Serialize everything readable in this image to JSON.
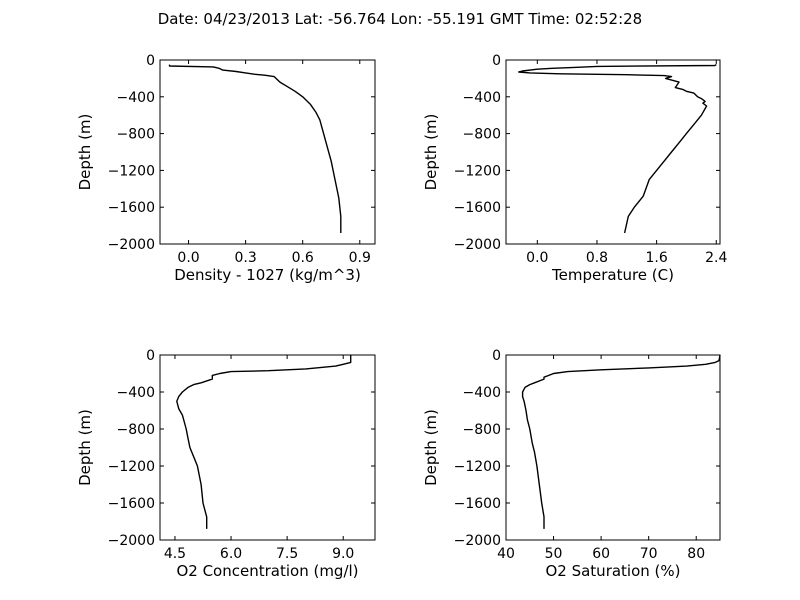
{
  "figure_title": "Date: 04/23/2013  Lat:  -56.764 Lon:  -55.191  GMT Time: 02:52:28",
  "chart_data": [
    {
      "type": "line",
      "xlabel": "Density - 1027 (kg/m^3)",
      "ylabel": "Depth (m)",
      "xlim": [
        -0.15,
        0.98
      ],
      "ylim": [
        -2000,
        0
      ],
      "xticks": [
        0.0,
        0.3,
        0.6,
        0.9
      ],
      "xtick_labels": [
        "0.0",
        "0.3",
        "0.6",
        "0.9"
      ],
      "yticks": [
        0,
        -400,
        -800,
        -1200,
        -1600,
        -2000
      ],
      "ytick_labels": [
        "0",
        "−400",
        "−800",
        "−1200",
        "−1600",
        "−2000"
      ],
      "x": [
        -0.1,
        -0.1,
        0.13,
        0.16,
        0.18,
        0.25,
        0.3,
        0.35,
        0.4,
        0.45,
        0.48,
        0.52,
        0.56,
        0.6,
        0.64,
        0.67,
        0.69,
        0.71,
        0.73,
        0.75,
        0.77,
        0.79,
        0.8,
        0.8
      ],
      "y": [
        -50,
        -65,
        -75,
        -90,
        -110,
        -125,
        -140,
        -155,
        -165,
        -180,
        -240,
        -290,
        -340,
        -400,
        -480,
        -570,
        -650,
        -800,
        -950,
        -1100,
        -1300,
        -1500,
        -1700,
        -1880
      ]
    },
    {
      "type": "line",
      "xlabel": "Temperature (C)",
      "ylabel": "Depth (m)",
      "xlim": [
        -0.42,
        2.45
      ],
      "ylim": [
        -2000,
        0
      ],
      "xticks": [
        0.0,
        0.8,
        1.6,
        2.4
      ],
      "xtick_labels": [
        "0.0",
        "0.8",
        "1.6",
        "2.4"
      ],
      "yticks": [
        0,
        -400,
        -800,
        -1200,
        -1600,
        -2000
      ],
      "ytick_labels": [
        "0",
        "−400",
        "−800",
        "−1200",
        "−1600",
        "−2000"
      ],
      "x": [
        2.4,
        2.38,
        0.8,
        0.5,
        0.2,
        0.0,
        -0.2,
        -0.25,
        -0.1,
        0.3,
        1.2,
        1.7,
        1.8,
        1.72,
        1.9,
        1.85,
        1.95,
        2.0,
        2.1,
        2.15,
        2.2,
        2.25,
        2.22,
        2.27,
        2.2,
        2.1,
        2.0,
        1.9,
        1.8,
        1.7,
        1.6,
        1.5,
        1.42,
        1.3,
        1.22,
        1.17
      ],
      "y": [
        -50,
        -60,
        -70,
        -80,
        -90,
        -100,
        -120,
        -130,
        -140,
        -150,
        -160,
        -170,
        -180,
        -200,
        -240,
        -300,
        -320,
        -340,
        -360,
        -400,
        -420,
        -450,
        -470,
        -500,
        -600,
        -700,
        -800,
        -900,
        -1000,
        -1100,
        -1200,
        -1300,
        -1480,
        -1600,
        -1700,
        -1880
      ]
    },
    {
      "type": "line",
      "xlabel": "O2 Concentration (mg/l)",
      "ylabel": "Depth (m)",
      "xlim": [
        4.1,
        9.85
      ],
      "ylim": [
        -2000,
        0
      ],
      "xticks": [
        4.5,
        6.0,
        7.5,
        9.0
      ],
      "xtick_labels": [
        "4.5",
        "6.0",
        "7.5",
        "9.0"
      ],
      "yticks": [
        0,
        -400,
        -800,
        -1200,
        -1600,
        -2000
      ],
      "ytick_labels": [
        "0",
        "−400",
        "−800",
        "−1200",
        "−1600",
        "−2000"
      ],
      "x": [
        9.2,
        9.2,
        9.0,
        8.8,
        8.0,
        7.0,
        6.0,
        5.7,
        5.5,
        5.5,
        5.2,
        5.0,
        4.85,
        4.7,
        4.6,
        4.55,
        4.6,
        4.7,
        4.8,
        4.85,
        4.9,
        5.0,
        5.1,
        5.2,
        5.25,
        5.35,
        5.35
      ],
      "y": [
        0,
        -80,
        -100,
        -120,
        -150,
        -170,
        -180,
        -200,
        -220,
        -260,
        -300,
        -320,
        -350,
        -400,
        -450,
        -500,
        -580,
        -650,
        -800,
        -900,
        -1000,
        -1100,
        -1200,
        -1400,
        -1600,
        -1750,
        -1880
      ]
    },
    {
      "type": "line",
      "xlabel": "O2 Saturation (%)",
      "ylabel": "Depth (m)",
      "xlim": [
        40,
        85
      ],
      "ylim": [
        -2000,
        0
      ],
      "xticks": [
        40,
        50,
        60,
        70,
        80
      ],
      "xtick_labels": [
        "40",
        "50",
        "60",
        "70",
        "80"
      ],
      "yticks": [
        0,
        -400,
        -800,
        -1200,
        -1600,
        -2000
      ],
      "ytick_labels": [
        "0",
        "−400",
        "−800",
        "−1200",
        "−1600",
        "−2000"
      ],
      "x": [
        85,
        84.8,
        84,
        82,
        78,
        70,
        60,
        53,
        50,
        49,
        48,
        48,
        46,
        45,
        44,
        43.5,
        43.5,
        43.8,
        44.2,
        44.5,
        45,
        45.5,
        46,
        46.5,
        47,
        47.5,
        48,
        48
      ],
      "y": [
        0,
        -60,
        -80,
        -100,
        -120,
        -140,
        -160,
        -180,
        -200,
        -220,
        -240,
        -260,
        -300,
        -320,
        -350,
        -400,
        -450,
        -500,
        -600,
        -700,
        -800,
        -950,
        -1050,
        -1200,
        -1400,
        -1600,
        -1750,
        -1880
      ]
    }
  ]
}
